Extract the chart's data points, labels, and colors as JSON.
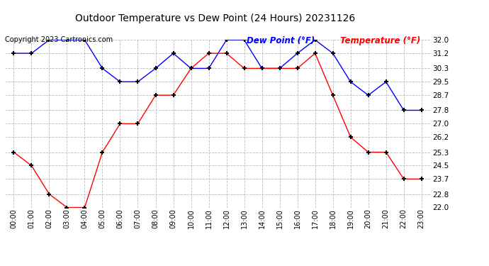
{
  "title": "Outdoor Temperature vs Dew Point (24 Hours) 20231126",
  "copyright": "Copyright 2023 Cartronics.com",
  "legend_dew": "Dew Point (°F)",
  "legend_temp": "Temperature (°F)",
  "x_labels": [
    "00:00",
    "01:00",
    "02:00",
    "03:00",
    "04:00",
    "05:00",
    "06:00",
    "07:00",
    "08:00",
    "09:00",
    "10:00",
    "11:00",
    "12:00",
    "13:00",
    "14:00",
    "15:00",
    "16:00",
    "17:00",
    "18:00",
    "19:00",
    "20:00",
    "21:00",
    "22:00",
    "23:00"
  ],
  "temperature": [
    25.3,
    24.5,
    22.8,
    22.0,
    22.0,
    25.3,
    27.0,
    27.0,
    28.7,
    28.7,
    30.3,
    31.2,
    31.2,
    30.3,
    30.3,
    30.3,
    30.3,
    31.2,
    28.7,
    26.2,
    25.3,
    25.3,
    23.7,
    23.7
  ],
  "dew_point": [
    31.2,
    31.2,
    32.0,
    32.0,
    32.0,
    30.3,
    29.5,
    29.5,
    30.3,
    31.2,
    30.3,
    30.3,
    32.0,
    32.0,
    30.3,
    30.3,
    31.2,
    32.0,
    31.2,
    29.5,
    28.7,
    29.5,
    27.8,
    27.8
  ],
  "ylim": [
    22.0,
    32.0
  ],
  "yticks": [
    22.0,
    22.8,
    23.7,
    24.5,
    25.3,
    26.2,
    27.0,
    27.8,
    28.7,
    29.5,
    30.3,
    31.2,
    32.0
  ],
  "temp_color": "#ff0000",
  "dew_color": "#0000ff",
  "grid_color": "#bbbbbb",
  "bg_color": "#ffffff",
  "title_color": "#000000",
  "legend_dew_color": "#0000ff",
  "legend_temp_color": "#ff0000",
  "copyright_color": "#000000"
}
